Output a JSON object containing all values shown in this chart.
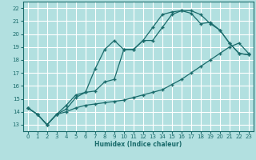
{
  "background_color": "#b2e0e0",
  "grid_color": "#ffffff",
  "line_color": "#1a6b6b",
  "xlabel": "Humidex (Indice chaleur)",
  "xlim": [
    -0.5,
    23.5
  ],
  "ylim": [
    12.5,
    22.5
  ],
  "xticks": [
    0,
    1,
    2,
    3,
    4,
    5,
    6,
    7,
    8,
    9,
    10,
    11,
    12,
    13,
    14,
    15,
    16,
    17,
    18,
    19,
    20,
    21,
    22,
    23
  ],
  "yticks": [
    13,
    14,
    15,
    16,
    17,
    18,
    19,
    20,
    21,
    22
  ],
  "line1_x": [
    0,
    1,
    2,
    3,
    4,
    5,
    6,
    7,
    8,
    9,
    10,
    11,
    12,
    13,
    14,
    15,
    16,
    17,
    18,
    19,
    20,
    21,
    22,
    23
  ],
  "line1_y": [
    14.3,
    13.8,
    13.0,
    13.8,
    14.5,
    15.3,
    15.5,
    17.3,
    18.8,
    19.5,
    18.8,
    18.8,
    19.5,
    20.5,
    21.5,
    21.7,
    21.8,
    21.6,
    20.8,
    20.9,
    20.3,
    19.3,
    18.5,
    18.4
  ],
  "line2_x": [
    0,
    1,
    2,
    3,
    4,
    5,
    6,
    7,
    8,
    9,
    10,
    11,
    12,
    13,
    14,
    15,
    16,
    17,
    18,
    19,
    20,
    21,
    22,
    23
  ],
  "line2_y": [
    14.3,
    13.8,
    13.0,
    13.8,
    14.2,
    15.1,
    15.5,
    15.6,
    16.3,
    16.5,
    18.8,
    18.8,
    19.5,
    19.5,
    20.5,
    21.5,
    21.8,
    21.8,
    21.5,
    20.8,
    20.3,
    19.3,
    18.5,
    18.4
  ],
  "line3_x": [
    0,
    1,
    2,
    3,
    4,
    5,
    6,
    7,
    8,
    9,
    10,
    11,
    12,
    13,
    14,
    15,
    16,
    17,
    18,
    19,
    20,
    21,
    22,
    23
  ],
  "line3_y": [
    14.3,
    13.8,
    13.0,
    13.8,
    14.0,
    14.3,
    14.5,
    14.6,
    14.7,
    14.8,
    14.9,
    15.1,
    15.3,
    15.5,
    15.7,
    16.1,
    16.5,
    17.0,
    17.5,
    18.0,
    18.5,
    19.0,
    19.3,
    18.5
  ]
}
